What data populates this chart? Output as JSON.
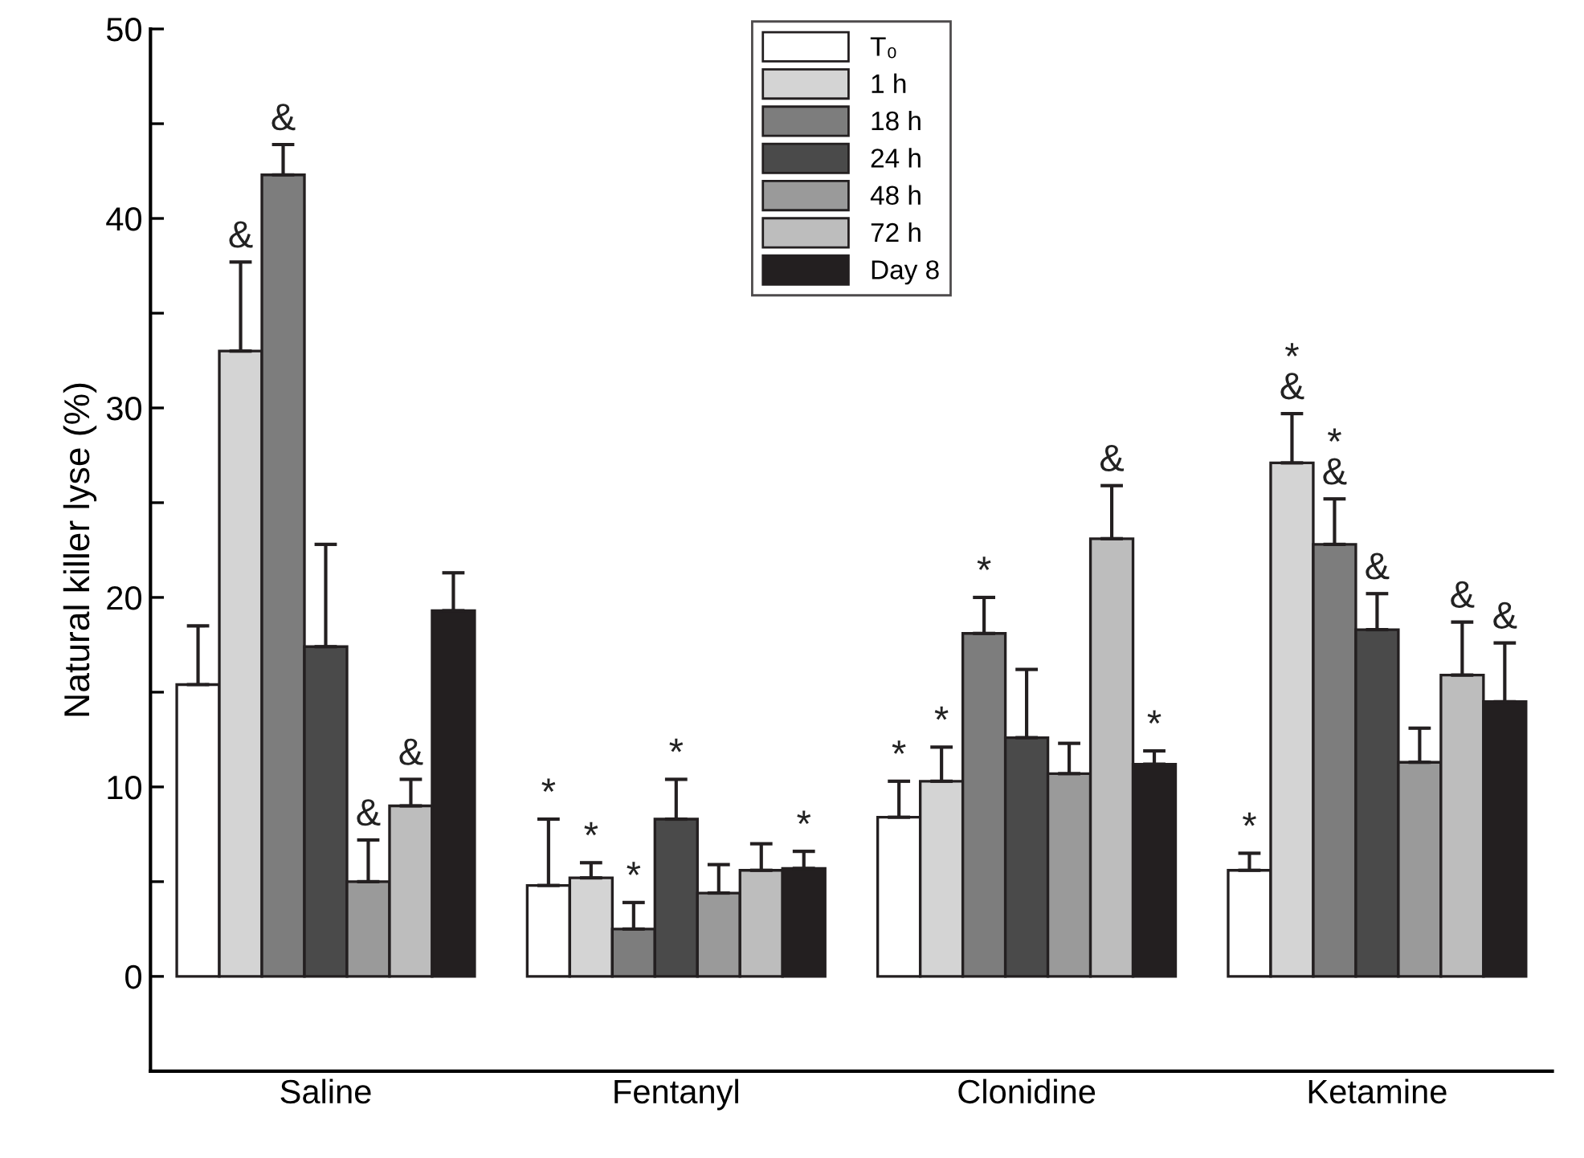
{
  "chart_data": {
    "type": "bar",
    "ylabel": "Natural killer lyse (%)",
    "categories": [
      "Saline",
      "Fentanyl",
      "Clonidine",
      "Ketamine"
    ],
    "series": [
      {
        "name": "T₀",
        "color": "#ffffff",
        "values": [
          15.4,
          4.8,
          8.4,
          5.6
        ],
        "errors": [
          [
            15.4,
            18.5
          ],
          [
            4.8,
            8.3
          ],
          [
            8.4,
            10.3
          ],
          [
            5.6,
            6.5
          ]
        ],
        "value_labels": [
          null,
          "*",
          "*",
          "*"
        ]
      },
      {
        "name": "1 h",
        "color": "#d4d4d4",
        "values": [
          33.0,
          5.2,
          10.3,
          27.1
        ],
        "errors": [
          [
            33.0,
            37.7
          ],
          [
            5.2,
            6.0
          ],
          [
            10.3,
            12.1
          ],
          [
            27.1,
            29.7
          ]
        ],
        "value_labels": [
          "&",
          "*",
          "*",
          "*\n&"
        ]
      },
      {
        "name": "18 h",
        "color": "#7d7d7d",
        "values": [
          42.3,
          2.5,
          18.1,
          22.8
        ],
        "errors": [
          [
            42.3,
            43.9
          ],
          [
            2.5,
            3.9
          ],
          [
            18.1,
            20.0
          ],
          [
            22.8,
            25.2
          ]
        ],
        "value_labels": [
          "&",
          "*",
          "*",
          "*\n&"
        ]
      },
      {
        "name": "24 h",
        "color": "#4a4a4a",
        "values": [
          17.4,
          8.3,
          12.6,
          18.3
        ],
        "errors": [
          [
            17.4,
            22.8
          ],
          [
            8.3,
            10.4
          ],
          [
            12.6,
            16.2
          ],
          [
            18.3,
            20.2
          ]
        ],
        "value_labels": [
          null,
          "*",
          null,
          "&"
        ]
      },
      {
        "name": "48 h",
        "color": "#9a9a9a",
        "values": [
          5.0,
          4.4,
          10.7,
          11.3
        ],
        "errors": [
          [
            5.0,
            7.2
          ],
          [
            4.4,
            5.9
          ],
          [
            10.7,
            12.3
          ],
          [
            11.3,
            13.1
          ]
        ],
        "value_labels": [
          "&",
          null,
          null,
          null
        ]
      },
      {
        "name": "72 h",
        "color": "#bdbdbd",
        "values": [
          9.0,
          5.6,
          23.1,
          15.9
        ],
        "errors": [
          [
            9.0,
            10.4
          ],
          [
            5.6,
            7.0
          ],
          [
            23.1,
            25.9
          ],
          [
            15.9,
            18.7
          ]
        ],
        "value_labels": [
          "&",
          null,
          "&",
          "&"
        ]
      },
      {
        "name": "Day 8",
        "color": "#231f20",
        "values": [
          19.3,
          5.7,
          11.2,
          14.5
        ],
        "errors": [
          [
            19.3,
            21.3
          ],
          [
            5.7,
            6.6
          ],
          [
            11.2,
            11.9
          ],
          [
            14.5,
            17.6
          ]
        ],
        "value_labels": [
          null,
          "*",
          "*",
          "&"
        ]
      }
    ],
    "ylim": [
      -5,
      50
    ],
    "yticks": [
      0,
      {
        "value": 5,
        "label": null
      },
      10,
      {
        "value": 15,
        "label": null
      },
      20,
      {
        "value": 25,
        "label": null
      },
      30,
      {
        "value": 35,
        "label": null
      },
      40,
      {
        "value": 45,
        "label": null
      },
      50
    ],
    "legend": "top",
    "grid": false
  }
}
